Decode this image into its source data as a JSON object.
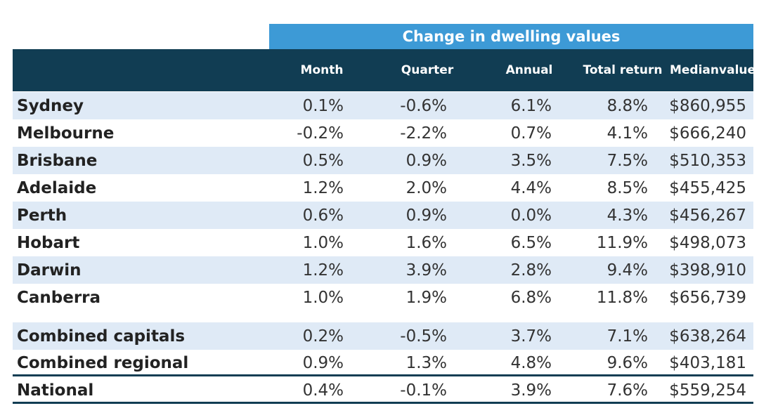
{
  "table": {
    "group_header": "Change in dwelling values",
    "columns": {
      "month": "Month",
      "quarter": "Quarter",
      "annual": "Annual",
      "total_return": "Total return",
      "median_line1": "Median",
      "median_line2": "value"
    },
    "rows": [
      {
        "name": "Sydney",
        "month": "0.1%",
        "quarter": "-0.6%",
        "annual": "6.1%",
        "total_return": "8.8%",
        "median": "$860,955"
      },
      {
        "name": "Melbourne",
        "month": "-0.2%",
        "quarter": "-2.2%",
        "annual": "0.7%",
        "total_return": "4.1%",
        "median": "$666,240"
      },
      {
        "name": "Brisbane",
        "month": "0.5%",
        "quarter": "0.9%",
        "annual": "3.5%",
        "total_return": "7.5%",
        "median": "$510,353"
      },
      {
        "name": "Adelaide",
        "month": "1.2%",
        "quarter": "2.0%",
        "annual": "4.4%",
        "total_return": "8.5%",
        "median": "$455,425"
      },
      {
        "name": "Perth",
        "month": "0.6%",
        "quarter": "0.9%",
        "annual": "0.0%",
        "total_return": "4.3%",
        "median": "$456,267"
      },
      {
        "name": "Hobart",
        "month": "1.0%",
        "quarter": "1.6%",
        "annual": "6.5%",
        "total_return": "11.9%",
        "median": "$498,073"
      },
      {
        "name": "Darwin",
        "month": "1.2%",
        "quarter": "3.9%",
        "annual": "2.8%",
        "total_return": "9.4%",
        "median": "$398,910"
      },
      {
        "name": "Canberra",
        "month": "1.0%",
        "quarter": "1.9%",
        "annual": "6.8%",
        "total_return": "11.8%",
        "median": "$656,739"
      },
      {
        "name": "Combined capitals",
        "month": "0.2%",
        "quarter": "-0.5%",
        "annual": "3.7%",
        "total_return": "7.1%",
        "median": "$638,264"
      },
      {
        "name": "Combined regional",
        "month": "0.9%",
        "quarter": "1.3%",
        "annual": "4.8%",
        "total_return": "9.6%",
        "median": "$403,181"
      },
      {
        "name": "National",
        "month": "0.4%",
        "quarter": "-0.1%",
        "annual": "3.9%",
        "total_return": "7.6%",
        "median": "$559,254"
      }
    ]
  },
  "colors": {
    "group_header_bg": "#3d9ad6",
    "header_bg": "#113d53",
    "row_shade": "#dfeaf6"
  }
}
